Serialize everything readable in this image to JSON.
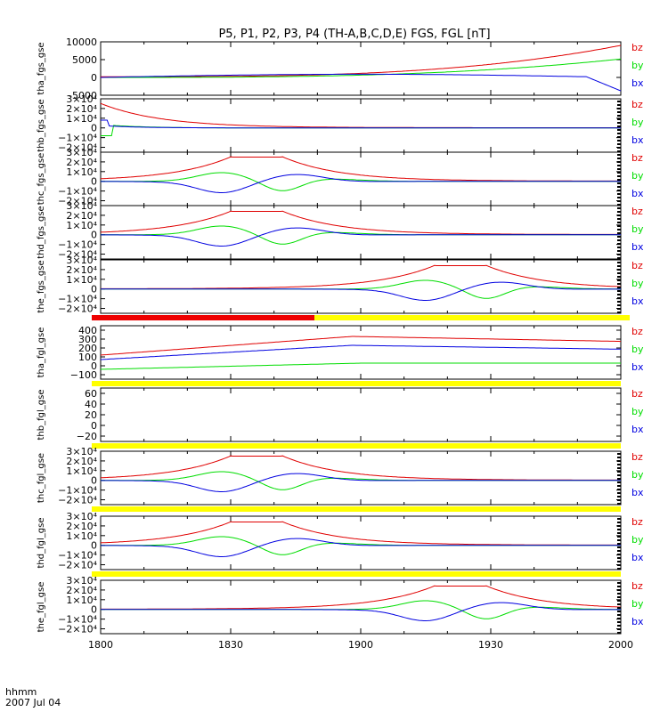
{
  "chart_data": {
    "type": "line",
    "title": "P5, P1, P2, P3, P4 (TH-A,B,C,D,E) FGS, FGL [nT]",
    "time_axis": {
      "range": [
        1800,
        2000
      ],
      "tick_labels": [
        "1800",
        "1830",
        "1900",
        "1930",
        "2000"
      ],
      "corner_labels": [
        "hhmm",
        "2007 Jul 04"
      ]
    },
    "legend_labels": [
      "bz",
      "by",
      "bx"
    ],
    "colors": {
      "bz": "#e00000",
      "by": "#00dd00",
      "bx": "#0000e0",
      "bar_yellow": "#ffff00",
      "bar_red": "#ee0000",
      "mark": "#000000"
    },
    "panels": [
      {
        "name": "tha_fgs_gse",
        "ylim": [
          -5000,
          10000
        ],
        "ticks": [
          "10000",
          "5000",
          "0",
          "-5000"
        ],
        "tick_values": [
          10000,
          5000,
          0,
          -5000
        ],
        "profile": "ramp",
        "peak": 9000,
        "bar_after": null
      },
      {
        "name": "thb_fgs_gse",
        "ylim": [
          -25000,
          30000
        ],
        "ticks": [
          "3×10⁴",
          "2×10⁴",
          "1×10⁴",
          "0",
          "−1×10⁴",
          "−2×10⁴"
        ],
        "tick_values": [
          30000,
          20000,
          10000,
          0,
          -10000,
          -20000
        ],
        "profile": "decay",
        "peak": 25000,
        "bar_after": null
      },
      {
        "name": "thc_fgs_gse",
        "ylim": [
          -25000,
          30000
        ],
        "ticks": [
          "3×10⁴",
          "2×10⁴",
          "1×10⁴",
          "0",
          "−1×10⁴",
          "−2×10⁴"
        ],
        "tick_values": [
          30000,
          20000,
          10000,
          0,
          -10000,
          -20000
        ],
        "profile": "encounter",
        "center": 1836,
        "peak": 25000,
        "bar_after": null
      },
      {
        "name": "thd_fgs_gse",
        "ylim": [
          -25000,
          30000
        ],
        "ticks": [
          "3×10⁴",
          "2×10⁴",
          "1×10⁴",
          "0",
          "−1×10⁴",
          "−2×10⁴"
        ],
        "tick_values": [
          30000,
          20000,
          10000,
          0,
          -10000,
          -20000
        ],
        "profile": "encounter",
        "center": 1836,
        "peak": 24000,
        "bar_after": null
      },
      {
        "name": "the_fgs_gse",
        "ylim": [
          -25000,
          30000
        ],
        "ticks": [
          "3×10⁴",
          "2×10⁴",
          "1×10⁴",
          "0",
          "−1×10⁴",
          "−2×10⁴"
        ],
        "tick_values": [
          30000,
          20000,
          10000,
          0,
          -10000,
          -20000
        ],
        "profile": "encounter",
        "center": 1883,
        "peak": 24000,
        "bar_after": "split"
      },
      {
        "name": "tha_fgl_gse",
        "ylim": [
          -150,
          450
        ],
        "ticks": [
          "400",
          "300",
          "200",
          "100",
          "0",
          "−100"
        ],
        "tick_values": [
          400,
          300,
          200,
          100,
          0,
          -100
        ],
        "profile": "fgl",
        "peak": 330,
        "bar_after": "yellow"
      },
      {
        "name": "thb_fgl_gse",
        "ylim": [
          -30,
          70
        ],
        "ticks": [
          "60",
          "40",
          "20",
          "0",
          "−20"
        ],
        "tick_values": [
          60,
          40,
          20,
          0,
          -20
        ],
        "profile": "none",
        "peak": 0,
        "bar_after": "yellow"
      },
      {
        "name": "thc_fgl_gse",
        "ylim": [
          -25000,
          30000
        ],
        "ticks": [
          "3×10⁴",
          "2×10⁴",
          "1×10⁴",
          "0",
          "−1×10⁴",
          "−2×10⁴"
        ],
        "tick_values": [
          30000,
          20000,
          10000,
          0,
          -10000,
          -20000
        ],
        "profile": "encounter",
        "center": 1836,
        "peak": 25000,
        "bar_after": "yellow"
      },
      {
        "name": "thd_fgl_gse",
        "ylim": [
          -25000,
          30000
        ],
        "ticks": [
          "3×10⁴",
          "2×10⁴",
          "1×10⁴",
          "0",
          "−1×10⁴",
          "−2×10⁴"
        ],
        "tick_values": [
          30000,
          20000,
          10000,
          0,
          -10000,
          -20000
        ],
        "profile": "encounter",
        "center": 1836,
        "peak": 24000,
        "bar_after": "yellow"
      },
      {
        "name": "the_fgl_gse",
        "ylim": [
          -25000,
          30000
        ],
        "ticks": [
          "3×10⁴",
          "2×10⁴",
          "1×10⁴",
          "0",
          "−1×10⁴",
          "−2×10⁴"
        ],
        "tick_values": [
          30000,
          20000,
          10000,
          0,
          -10000,
          -20000
        ],
        "profile": "encounter",
        "center": 1883,
        "peak": 24000,
        "bar_after": null
      }
    ]
  }
}
